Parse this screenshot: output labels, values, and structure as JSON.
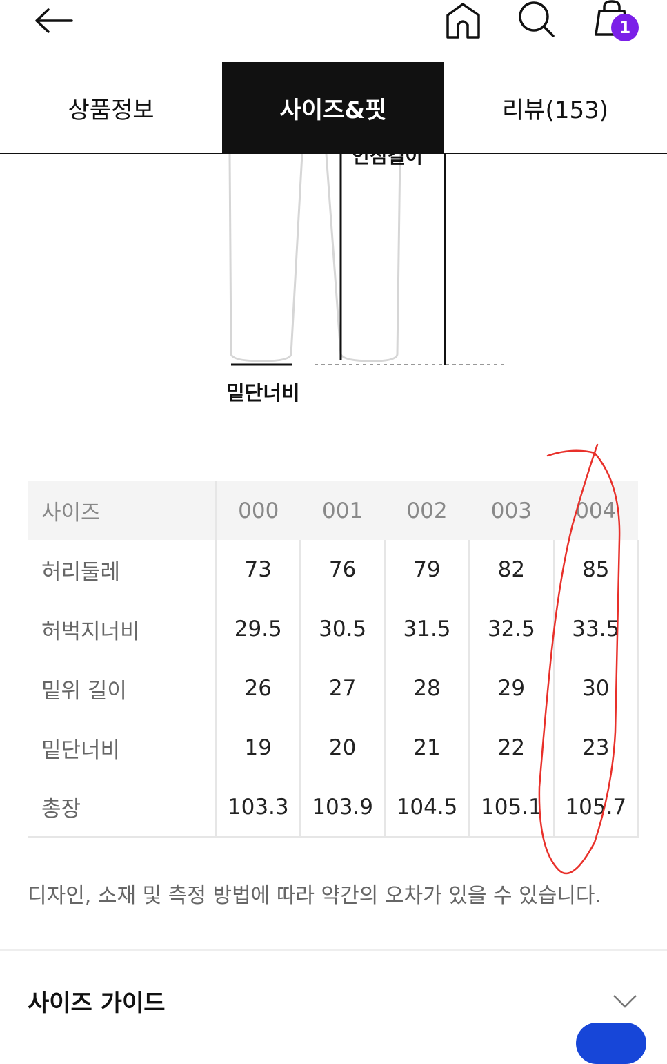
{
  "header": {
    "back_icon": "arrow-left-icon",
    "icons": [
      "home-icon",
      "search-icon",
      "shopping-bag-icon"
    ],
    "cart_count": "1",
    "badge_color": "#7b1fe8"
  },
  "tabs": [
    {
      "label": "상품정보"
    },
    {
      "label": "사이즈&핏",
      "active": true
    },
    {
      "label": "리뷰(153)"
    }
  ],
  "diagram": {
    "labels": {
      "inseam": "인심길이",
      "hem": "밑단너비"
    }
  },
  "size_table": {
    "header": [
      "사이즈",
      "000",
      "001",
      "002",
      "003",
      "004"
    ],
    "rows": [
      [
        "허리둘레",
        "73",
        "76",
        "79",
        "82",
        "85"
      ],
      [
        "허벅지너비",
        "29.5",
        "30.5",
        "31.5",
        "32.5",
        "33.5"
      ],
      [
        "밑위 길이",
        "26",
        "27",
        "28",
        "29",
        "30"
      ],
      [
        "밑단너비",
        "19",
        "20",
        "21",
        "22",
        "23"
      ],
      [
        "총장",
        "103.3",
        "103.9",
        "104.5",
        "105.1",
        "105.7"
      ]
    ]
  },
  "note": "디자인, 소재 및 측정 방법에 따라 약간의 오차가 있을 수 있습니다.",
  "size_guide": {
    "title": "사이즈 가이드",
    "icon": "chevron-down-icon"
  },
  "annotation_color": "#e8302a",
  "accent": "#1746d8"
}
